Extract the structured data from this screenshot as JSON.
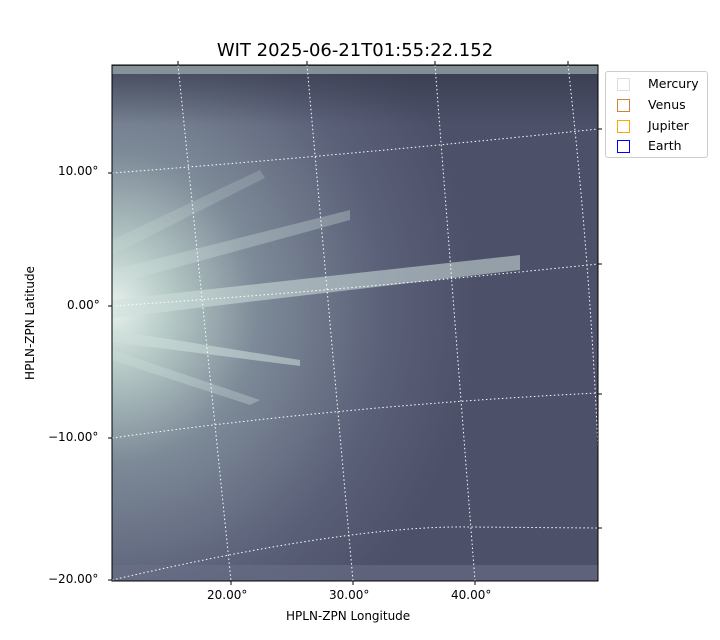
{
  "chart_data": {
    "type": "image",
    "title": "WIT 2025-06-21T01:55:22.152",
    "xlabel": "HPLN-ZPN Longitude",
    "ylabel": "HPLN-ZPN Latitude",
    "xticks": [
      "20.00°",
      "30.00°",
      "40.00°"
    ],
    "yticks": [
      "10.00°",
      "0.00°",
      "−10.00°",
      "−20.00°"
    ],
    "grid": true,
    "colormap": "bone",
    "legend": {
      "placement": "outside-top-right",
      "entries": [
        {
          "name": "Mercury",
          "color": "#dddddd"
        },
        {
          "name": "Venus",
          "color": "#d2813c"
        },
        {
          "name": "Jupiter",
          "color": "#ffa500"
        },
        {
          "name": "Earth",
          "color": "#0000ff"
        }
      ]
    }
  }
}
